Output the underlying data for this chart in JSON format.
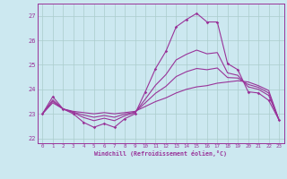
{
  "background_color": "#cce8f0",
  "grid_color": "#aacccc",
  "line_color": "#993399",
  "xlabel": "Windchill (Refroidissement éolien,°C)",
  "ylabel_ticks": [
    22,
    23,
    24,
    25,
    26,
    27
  ],
  "xlim": [
    -0.5,
    23.5
  ],
  "ylim": [
    21.8,
    27.5
  ],
  "hours": [
    0,
    1,
    2,
    3,
    4,
    5,
    6,
    7,
    8,
    9,
    10,
    11,
    12,
    13,
    14,
    15,
    16,
    17,
    18,
    19,
    20,
    21,
    22,
    23
  ],
  "line1": [
    23.0,
    23.7,
    23.2,
    23.0,
    22.65,
    22.45,
    22.6,
    22.45,
    22.8,
    23.0,
    23.9,
    24.85,
    25.55,
    26.55,
    26.85,
    27.1,
    26.75,
    26.75,
    25.05,
    24.8,
    23.9,
    23.85,
    23.55,
    22.75
  ],
  "line2": [
    23.0,
    23.45,
    23.2,
    23.1,
    23.05,
    23.0,
    23.05,
    23.0,
    23.05,
    23.1,
    23.3,
    23.5,
    23.65,
    23.85,
    24.0,
    24.1,
    24.15,
    24.25,
    24.3,
    24.35,
    24.3,
    24.15,
    23.95,
    22.75
  ],
  "line3": [
    23.0,
    23.57,
    23.2,
    23.05,
    22.85,
    22.72,
    22.82,
    22.72,
    22.92,
    23.05,
    23.6,
    24.17,
    24.6,
    25.2,
    25.43,
    25.6,
    25.45,
    25.5,
    24.67,
    24.57,
    24.1,
    24.0,
    23.75,
    22.75
  ],
  "line4": [
    23.0,
    23.51,
    23.2,
    23.07,
    22.95,
    22.86,
    22.93,
    22.86,
    22.99,
    23.07,
    23.45,
    23.84,
    24.12,
    24.52,
    24.72,
    24.85,
    24.8,
    24.87,
    24.48,
    24.46,
    24.2,
    24.08,
    23.85,
    22.75
  ]
}
